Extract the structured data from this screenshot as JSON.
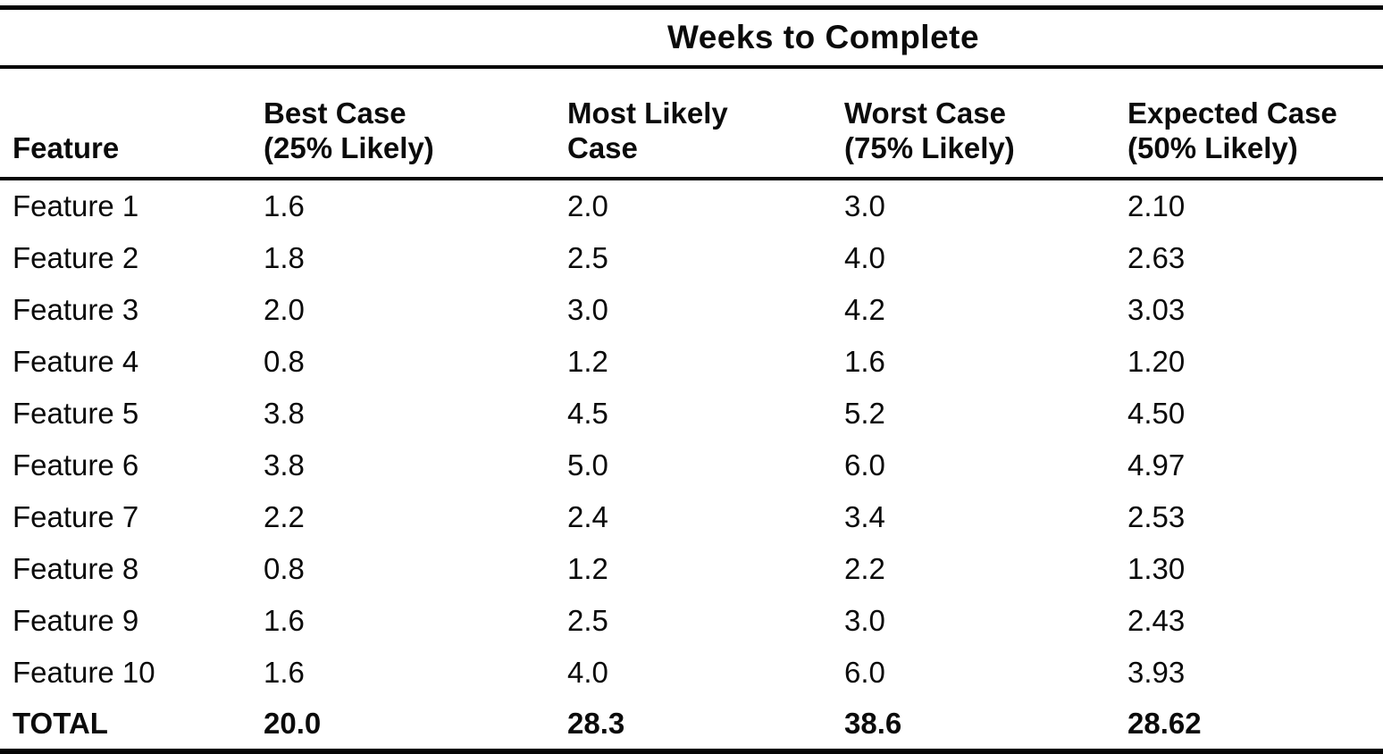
{
  "table": {
    "spanner_title": "Weeks to Complete",
    "headers": {
      "feature": "Feature",
      "best_case_line1": "Best Case",
      "best_case_line2": "(25% Likely)",
      "most_likely_line1": "Most Likely",
      "most_likely_line2": "Case",
      "worst_case_line1": "Worst Case",
      "worst_case_line2": "(75% Likely)",
      "expected_case_line1": "Expected Case",
      "expected_case_line2": "(50% Likely)"
    },
    "rows": [
      {
        "feature": "Feature 1",
        "best": "1.6",
        "most_likely": "2.0",
        "worst": "3.0",
        "expected": "2.10"
      },
      {
        "feature": "Feature 2",
        "best": "1.8",
        "most_likely": "2.5",
        "worst": "4.0",
        "expected": "2.63"
      },
      {
        "feature": "Feature 3",
        "best": "2.0",
        "most_likely": "3.0",
        "worst": "4.2",
        "expected": "3.03"
      },
      {
        "feature": "Feature 4",
        "best": "0.8",
        "most_likely": "1.2",
        "worst": "1.6",
        "expected": "1.20"
      },
      {
        "feature": "Feature 5",
        "best": "3.8",
        "most_likely": "4.5",
        "worst": "5.2",
        "expected": "4.50"
      },
      {
        "feature": "Feature 6",
        "best": "3.8",
        "most_likely": "5.0",
        "worst": "6.0",
        "expected": "4.97"
      },
      {
        "feature": "Feature 7",
        "best": "2.2",
        "most_likely": "2.4",
        "worst": "3.4",
        "expected": "2.53"
      },
      {
        "feature": "Feature 8",
        "best": "0.8",
        "most_likely": "1.2",
        "worst": "2.2",
        "expected": "1.30"
      },
      {
        "feature": "Feature 9",
        "best": "1.6",
        "most_likely": "2.5",
        "worst": "3.0",
        "expected": "2.43"
      },
      {
        "feature": "Feature 10",
        "best": "1.6",
        "most_likely": "4.0",
        "worst": "6.0",
        "expected": "3.93"
      }
    ],
    "total": {
      "label": "TOTAL",
      "best": "20.0",
      "most_likely": "28.3",
      "worst": "38.6",
      "expected": "28.62"
    }
  }
}
